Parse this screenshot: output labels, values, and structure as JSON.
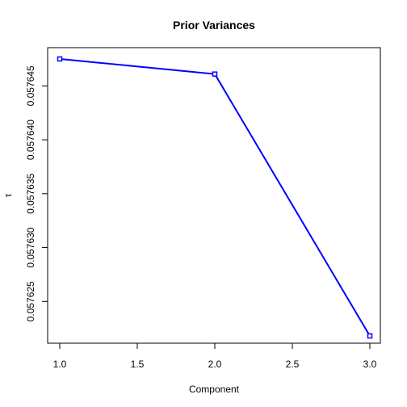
{
  "chart_data": {
    "type": "line",
    "title": "Prior Variances",
    "xlabel": "Component",
    "ylabel": "τ",
    "x": [
      1,
      2,
      3
    ],
    "series": [
      {
        "values": [
          0.0576475,
          0.0576461,
          0.0576218
        ]
      }
    ],
    "xlim": [
      1,
      3
    ],
    "ylim": [
      0.057621,
      0.057648
    ],
    "xticks": [
      1.0,
      1.5,
      2.0,
      2.5,
      3.0
    ],
    "xtick_labels": [
      "1.0",
      "1.5",
      "2.0",
      "2.5",
      "3.0"
    ],
    "yticks": [
      0.057625,
      0.05763,
      0.057635,
      0.05764,
      0.057645
    ],
    "ytick_labels": [
      "0.057625",
      "0.057630",
      "0.057635",
      "0.057640",
      "0.057645"
    ],
    "line_color": "#0000ff",
    "grid": false,
    "legend": "none"
  }
}
